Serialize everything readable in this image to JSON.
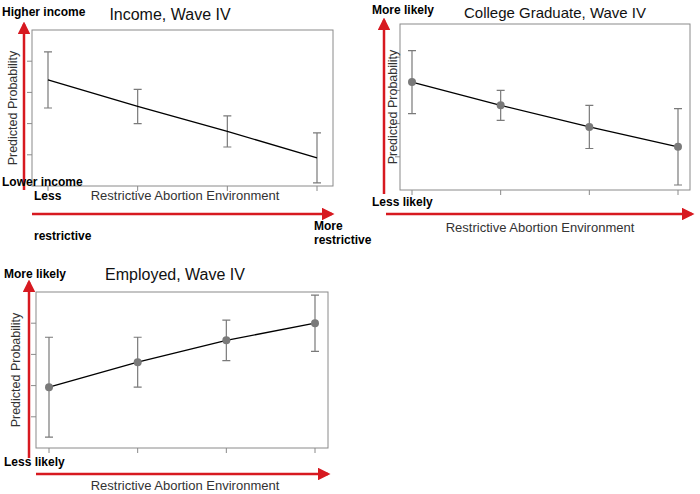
{
  "chart_data": [
    {
      "type": "line",
      "title": "Income, Wave IV",
      "x_label": "Restrictive Abortion Environment",
      "y_label": "Predicted Probability",
      "y_annotations": [
        "Higher income",
        "Lower income"
      ],
      "x_annotations": [
        "Less restrictive",
        "More restrictive"
      ],
      "categories": [
        null,
        null,
        null,
        null
      ],
      "series": [
        {
          "color": "#000000",
          "marker": "none",
          "line_style": "solid",
          "values": [
            6.8,
            5.1,
            3.5,
            1.8
          ],
          "error": [
            1.8,
            1.1,
            1.0,
            1.6
          ]
        }
      ],
      "ylim": [
        0,
        10
      ],
      "yticks": [
        2,
        4,
        6,
        8
      ],
      "tick_labels": false
    },
    {
      "type": "line",
      "title": "College Graduate, Wave IV",
      "x_label": "Restrictive Abortion Environment",
      "y_label": "Predicted Probability",
      "y_annotations": [
        "More likely",
        "Less likely"
      ],
      "categories": [
        null,
        null,
        null,
        null
      ],
      "series": [
        {
          "color": "#000000",
          "marker": "circle",
          "line_style": "solid",
          "values": [
            6.5,
            5.1,
            3.8,
            2.6
          ],
          "error": [
            1.9,
            0.9,
            1.3,
            2.3
          ]
        }
      ],
      "ylim": [
        0,
        10
      ],
      "yticks": [
        2,
        4,
        6,
        8
      ],
      "tick_labels": false
    },
    {
      "type": "line",
      "title": "Employed, Wave IV",
      "x_label": "Restrictive Abortion Environment",
      "y_label": "Predicted Probability",
      "y_annotations": [
        "More likely",
        "Less likely"
      ],
      "categories": [
        null,
        null,
        null,
        null
      ],
      "series": [
        {
          "color": "#000000",
          "marker": "circle",
          "line_style": "solid",
          "values": [
            3.9,
            5.5,
            6.9,
            8.0
          ],
          "error": [
            3.2,
            1.6,
            1.3,
            1.8
          ]
        }
      ],
      "ylim": [
        0,
        10
      ],
      "yticks": [
        2,
        4,
        6,
        8
      ],
      "tick_labels": false
    }
  ]
}
